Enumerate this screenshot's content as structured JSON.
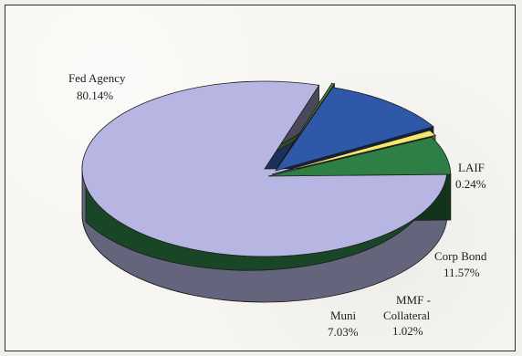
{
  "chart_data": {
    "type": "pie",
    "title": "",
    "slices": [
      {
        "label": "Fed Agency",
        "value": 80.14,
        "display_value": "80.14%",
        "color": "#b7b6e3"
      },
      {
        "label": "LAIF",
        "value": 0.24,
        "display_value": "0.24%",
        "color": "#4a8c3d"
      },
      {
        "label": "Corp Bond",
        "value": 11.57,
        "display_value": "11.57%",
        "color": "#2f59a8"
      },
      {
        "label": "MMF - Collateral",
        "value": 1.02,
        "display_value": "1.02%",
        "color": "#f1e86d"
      },
      {
        "label": "Muni",
        "value": 7.03,
        "display_value": "7.03%",
        "color": "#2d7f45"
      }
    ],
    "legend": "none",
    "grid": false,
    "style": "3d-exploded-pie"
  }
}
